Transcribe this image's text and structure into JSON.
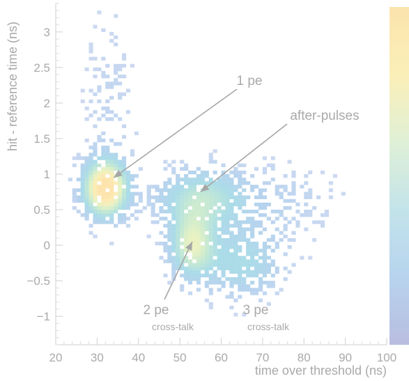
{
  "chart_data": {
    "type": "heatmap",
    "xlabel": "time over threshold (ns)",
    "ylabel": "hit - reference time (ns)",
    "xlim": [
      20,
      100
    ],
    "ylim": [
      -1.4,
      3.4
    ],
    "x_ticks": [
      20,
      30,
      40,
      50,
      60,
      70,
      80,
      90,
      100
    ],
    "y_ticks": [
      -1,
      -0.5,
      0,
      0.5,
      1,
      1.5,
      2,
      2.5,
      3
    ],
    "y_tick_labels": [
      "−1",
      "−0.5",
      "0",
      "0.5",
      "1",
      "1.5",
      "2",
      "2.5",
      "3"
    ],
    "colorbar": {
      "stops": [
        "#b9bde0",
        "#b7d3ee",
        "#c3e3ea",
        "#dff0d6",
        "#fbefb8",
        "#fbe3ad"
      ]
    },
    "clusters": [
      {
        "label": "1 pe",
        "x_center": 32,
        "y_center": 0.8,
        "density": "high"
      },
      {
        "label": "after-pulses",
        "x_center": 55,
        "y_center": 0.7,
        "density": "medium"
      },
      {
        "label": "2 pe cross-talk",
        "x_center": 53,
        "y_center": 0.0,
        "density": "medium"
      },
      {
        "label": "3 pe cross-talk",
        "x_center": 67,
        "y_center": -0.3,
        "density": "low"
      }
    ],
    "annotations": [
      {
        "id": "one-pe",
        "text": "1 pe",
        "arrow_to": [
          34,
          0.95
        ]
      },
      {
        "id": "after-pulses",
        "text": "after-pulses",
        "arrow_to": [
          55,
          0.75
        ]
      },
      {
        "id": "two-pe",
        "text": "2 pe",
        "subtext": "cross-talk",
        "arrow_to": [
          53,
          0.05
        ]
      },
      {
        "id": "three-pe",
        "text": "3 pe",
        "subtext": "cross-talk"
      }
    ]
  }
}
